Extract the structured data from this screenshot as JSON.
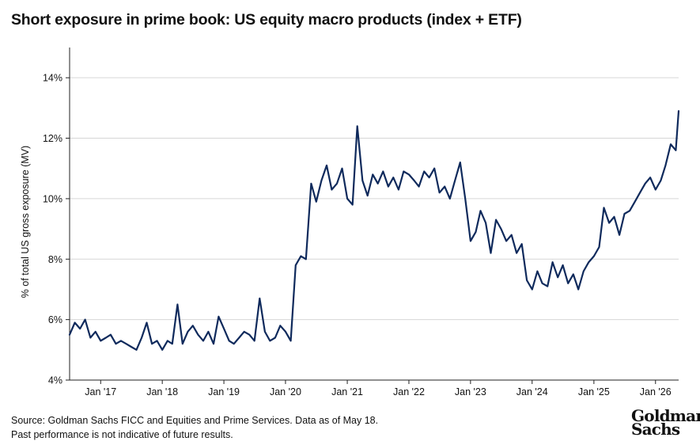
{
  "header": {
    "title": "Short exposure in prime book: US equity macro products (index + ETF)"
  },
  "footer": {
    "source": "Source: Goldman Sachs FICC and Equities and Prime Services. Data as of May 18.",
    "disclaimer": "Past performance is not indicative of future results."
  },
  "logo": {
    "line1": "Goldman",
    "line2": "Sachs"
  },
  "chart_data": {
    "type": "line",
    "title": "Short exposure in prime book: US equity macro products (index + ETF)",
    "ylabel": "% of total US gross exposure (MV)",
    "xlabel": "",
    "ylim": [
      4,
      15
    ],
    "xlim": [
      "2016-07-01",
      "2026-05-18"
    ],
    "yticks": [
      4,
      6,
      8,
      10,
      12,
      14
    ],
    "ytick_labels": [
      "4%",
      "6%",
      "8%",
      "10%",
      "12%",
      "14%"
    ],
    "xticks": [
      "2017-01-01",
      "2018-01-01",
      "2019-01-01",
      "2020-01-01",
      "2021-01-01",
      "2022-01-01",
      "2023-01-01",
      "2024-01-01",
      "2025-01-01",
      "2026-01-01"
    ],
    "xtick_labels": [
      "Jan '17",
      "Jan '18",
      "Jan '19",
      "Jan '20",
      "Jan '21",
      "Jan '22",
      "Jan '23",
      "Jan '24",
      "Jan '25",
      "Jan '26"
    ],
    "grid": "horizontal",
    "line_color": "#0f2a5c",
    "series": [
      {
        "x": [
          "2016-07-01",
          "2016-08-01",
          "2016-09-01",
          "2016-10-01",
          "2016-11-01",
          "2016-12-01",
          "2017-01-01",
          "2017-02-01",
          "2017-03-01",
          "2017-04-01",
          "2017-05-01",
          "2017-06-01",
          "2017-07-01",
          "2017-08-01",
          "2017-09-01",
          "2017-10-01",
          "2017-11-01",
          "2017-12-01",
          "2018-01-01",
          "2018-02-01",
          "2018-03-01",
          "2018-04-01",
          "2018-05-01",
          "2018-06-01",
          "2018-07-01",
          "2018-08-01",
          "2018-09-01",
          "2018-10-01",
          "2018-11-01",
          "2018-12-01",
          "2019-01-01",
          "2019-02-01",
          "2019-03-01",
          "2019-04-01",
          "2019-05-01",
          "2019-06-01",
          "2019-07-01",
          "2019-08-01",
          "2019-09-01",
          "2019-10-01",
          "2019-11-01",
          "2019-12-01",
          "2020-01-01",
          "2020-02-01",
          "2020-03-01",
          "2020-04-01",
          "2020-05-01",
          "2020-06-01",
          "2020-07-01",
          "2020-08-01",
          "2020-09-01",
          "2020-10-01",
          "2020-11-01",
          "2020-12-01",
          "2021-01-01",
          "2021-02-01",
          "2021-03-01",
          "2021-04-01",
          "2021-05-01",
          "2021-06-01",
          "2021-07-01",
          "2021-08-01",
          "2021-09-01",
          "2021-10-01",
          "2021-11-01",
          "2021-12-01",
          "2022-01-01",
          "2022-02-01",
          "2022-03-01",
          "2022-04-01",
          "2022-05-01",
          "2022-06-01",
          "2022-07-01",
          "2022-08-01",
          "2022-09-01",
          "2022-10-01",
          "2022-11-01",
          "2022-12-01",
          "2023-01-01",
          "2023-02-01",
          "2023-03-01",
          "2023-04-01",
          "2023-05-01",
          "2023-06-01",
          "2023-07-01",
          "2023-08-01",
          "2023-09-01",
          "2023-10-01",
          "2023-11-01",
          "2023-12-01",
          "2024-01-01",
          "2024-02-01",
          "2024-03-01",
          "2024-04-01",
          "2024-05-01",
          "2024-06-01",
          "2024-07-01",
          "2024-08-01",
          "2024-09-01",
          "2024-10-01",
          "2024-11-01",
          "2024-12-01",
          "2025-01-01",
          "2025-02-01",
          "2025-03-01",
          "2025-04-01",
          "2025-05-01",
          "2025-06-01",
          "2025-07-01",
          "2025-08-01",
          "2025-09-01",
          "2025-10-01",
          "2025-11-01",
          "2025-12-01",
          "2026-01-01",
          "2026-02-01",
          "2026-03-01",
          "2026-04-01",
          "2026-05-01",
          "2026-05-18"
        ],
        "values": [
          5.5,
          5.9,
          5.7,
          6.0,
          5.4,
          5.6,
          5.3,
          5.4,
          5.5,
          5.2,
          5.3,
          5.2,
          5.1,
          5.0,
          5.4,
          5.9,
          5.2,
          5.3,
          5.0,
          5.3,
          5.2,
          6.5,
          5.2,
          5.6,
          5.8,
          5.5,
          5.3,
          5.6,
          5.2,
          6.1,
          5.7,
          5.3,
          5.2,
          5.4,
          5.6,
          5.5,
          5.3,
          6.7,
          5.6,
          5.3,
          5.4,
          5.8,
          5.6,
          5.3,
          7.8,
          8.1,
          8.0,
          10.5,
          9.9,
          10.6,
          11.1,
          10.3,
          10.5,
          11.0,
          10.0,
          9.8,
          12.4,
          10.6,
          10.1,
          10.8,
          10.5,
          10.9,
          10.4,
          10.7,
          10.3,
          10.9,
          10.8,
          10.6,
          10.4,
          10.9,
          10.7,
          11.0,
          10.2,
          10.4,
          10.0,
          10.6,
          11.2,
          10.0,
          8.6,
          8.9,
          9.6,
          9.2,
          8.2,
          9.3,
          9.0,
          8.6,
          8.8,
          8.2,
          8.5,
          7.3,
          7.0,
          7.6,
          7.2,
          7.1,
          7.9,
          7.4,
          7.8,
          7.2,
          7.5,
          7.0,
          7.6,
          7.9,
          8.1,
          8.4,
          9.7,
          9.2,
          9.4,
          8.8,
          9.5,
          9.6,
          9.9,
          10.2,
          10.5,
          10.7,
          10.3,
          10.6,
          11.1,
          11.8,
          11.6,
          12.9
        ]
      }
    ]
  }
}
